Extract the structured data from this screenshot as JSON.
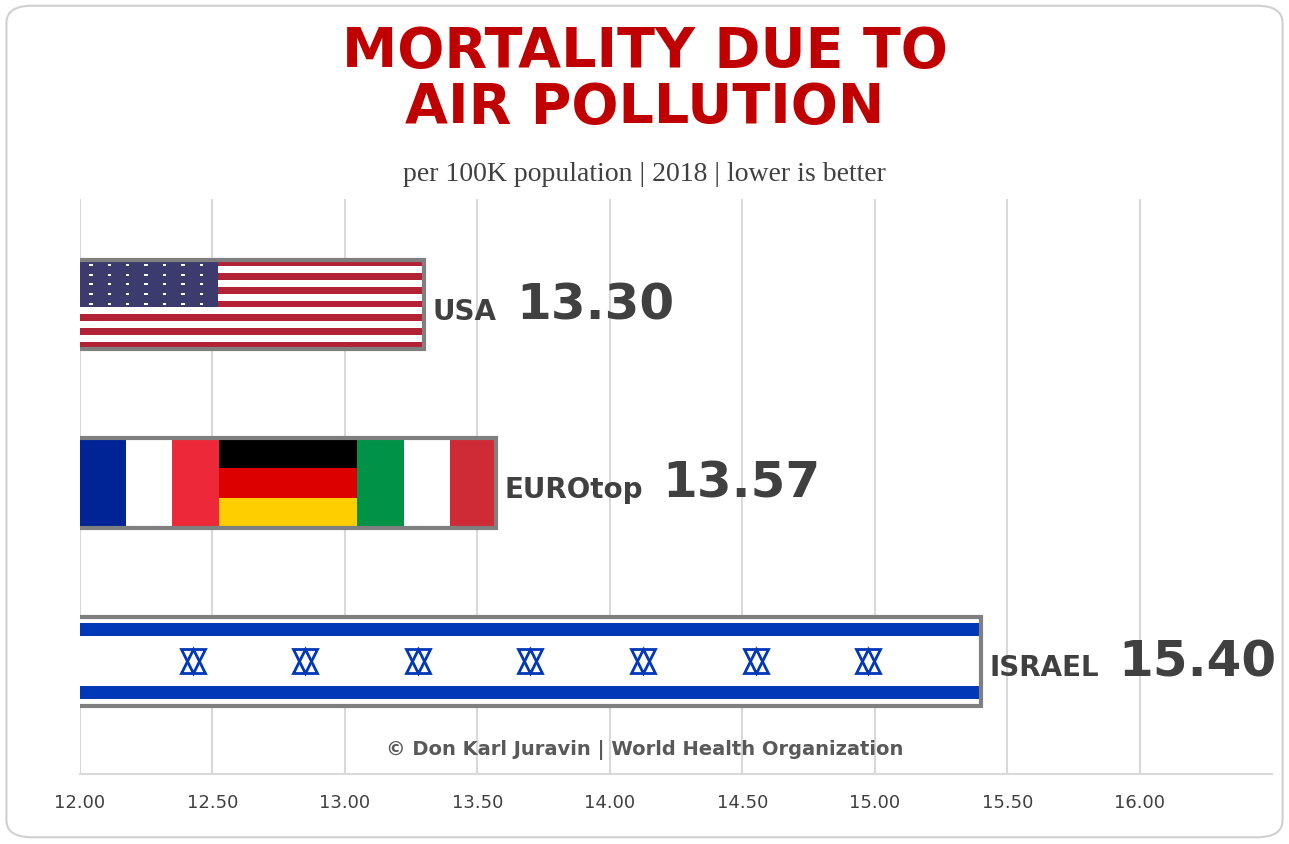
{
  "chart_data": {
    "type": "bar",
    "orientation": "horizontal",
    "title": "MORTALITY DUE TO\nAIR POLLUTION",
    "subtitle": "per 100K population | 2018 | lower is better",
    "source": "© Don Karl Juravin | World Health Organization",
    "categories": [
      "USA",
      "EUROtop",
      "ISRAEL"
    ],
    "values": [
      13.3,
      13.57,
      15.4
    ],
    "value_labels": [
      "13.30",
      "13.57",
      "15.40"
    ],
    "data_labels": true,
    "colors": [
      "#b22234",
      "#dd0000",
      "#0038b8"
    ],
    "xlim": [
      12,
      16.5
    ],
    "xticks": [
      {
        "value": 12,
        "label": "12.00"
      },
      {
        "value": 12.5,
        "label": "12.50"
      },
      {
        "value": 13,
        "label": "13.00"
      },
      {
        "value": 13.5,
        "label": "13.50"
      },
      {
        "value": 14,
        "label": "14.00"
      },
      {
        "value": 14.5,
        "label": "14.50"
      },
      {
        "value": 15,
        "label": "15.00"
      },
      {
        "value": 15.5,
        "label": "15.50"
      },
      {
        "value": 16,
        "label": "16.00"
      }
    ],
    "grid": true,
    "tick_labels": "x"
  }
}
